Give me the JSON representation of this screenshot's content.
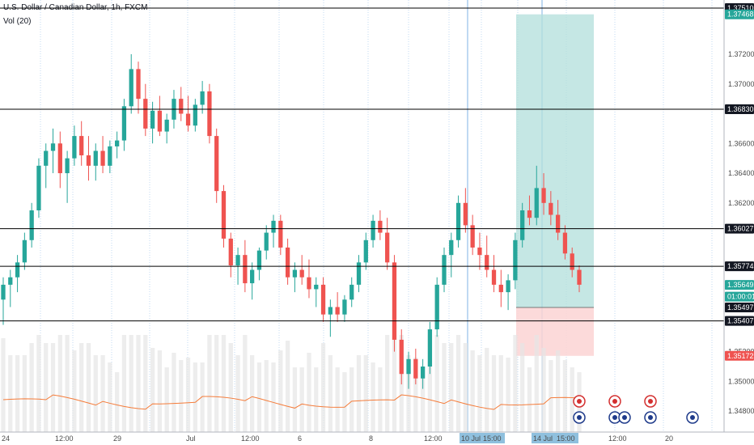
{
  "header": {
    "symbol_title": "U.S. Dollar / Canadian Dollar, 1h, FXCM",
    "volume_label": "Vol (20)"
  },
  "colors": {
    "up": "#26a69a",
    "down": "#ef5350",
    "volume": "#e6e6e6",
    "volume_ma": "#f57c3a",
    "target_zone": "#b2dfdb",
    "stop_zone": "#fbd4d4",
    "level_line": "#000000",
    "grid_dotted": "#7fb3e6",
    "price_box": "#26a69a",
    "stop_box": "#ef5350",
    "dark_box": "#131722"
  },
  "chart_data": {
    "type": "candlestick",
    "title": "U.S. Dollar / Canadian Dollar, 1h, FXCM",
    "indicator": "Vol (20)",
    "y_axis": {
      "ticks": [
        1.3748,
        1.372,
        1.37,
        1.368,
        1.366,
        1.364,
        1.362,
        1.36,
        1.358,
        1.356,
        1.354,
        1.352,
        1.35,
        1.348
      ],
      "tick_labels": [
        "1.37468",
        "1.37200",
        "1.37000",
        "1.36830",
        "1.36600",
        "1.36400",
        "1.36200",
        "1.36027",
        "1.35774",
        "1.35649",
        "1.35407",
        "1.35200",
        "1.35000",
        "1.34800"
      ],
      "ylim": [
        1.3468,
        1.3759
      ]
    },
    "x_axis": {
      "tick_labels": [
        "24",
        "12:00",
        "29",
        "Jul",
        "12:00",
        "6",
        "8",
        "12:00",
        "10 Jul '20",
        "15:00",
        "14 Jul '20",
        "15:00",
        "12:00",
        "20"
      ],
      "highlighted": [
        "10 Jul '20",
        "15:00",
        "14 Jul '20",
        "15:00"
      ]
    },
    "horizontal_levels": [
      1.3751,
      1.3683,
      1.36027,
      1.35774,
      1.35407
    ],
    "price_labels": [
      {
        "text": "1.37510",
        "value": 1.3751,
        "style": "dark"
      },
      {
        "text": "1.37468",
        "value": 1.37468,
        "style": "teal"
      },
      {
        "text": "1.36830",
        "value": 1.3683,
        "style": "dark"
      },
      {
        "text": "1.36027",
        "value": 1.36027,
        "style": "dark"
      },
      {
        "text": "1.35774",
        "value": 1.35774,
        "style": "dark"
      },
      {
        "text": "1.35649",
        "value": 1.35649,
        "style": "teal"
      },
      {
        "text": "01:00:01",
        "value": 1.3557,
        "style": "teal"
      },
      {
        "text": "1.35497",
        "value": 1.35497,
        "style": "dark"
      },
      {
        "text": "1.35407",
        "value": 1.35407,
        "style": "dark"
      },
      {
        "text": "1.35172",
        "value": 1.35172,
        "style": "red"
      }
    ],
    "position": {
      "entry": 1.35497,
      "target": 1.37468,
      "stop": 1.35172
    },
    "candles_ohlc": [
      [
        1.3555,
        1.357,
        1.3538,
        1.3565
      ],
      [
        1.3565,
        1.3575,
        1.355,
        1.357
      ],
      [
        1.357,
        1.3585,
        1.356,
        1.358
      ],
      [
        1.358,
        1.36,
        1.3575,
        1.3595
      ],
      [
        1.3595,
        1.362,
        1.359,
        1.3615
      ],
      [
        1.3615,
        1.365,
        1.361,
        1.3645
      ],
      [
        1.3645,
        1.366,
        1.363,
        1.3655
      ],
      [
        1.3655,
        1.367,
        1.364,
        1.366
      ],
      [
        1.366,
        1.3668,
        1.363,
        1.364
      ],
      [
        1.364,
        1.3655,
        1.362,
        1.365
      ],
      [
        1.365,
        1.3672,
        1.3645,
        1.3665
      ],
      [
        1.3665,
        1.3675,
        1.3645,
        1.3652
      ],
      [
        1.3652,
        1.3665,
        1.3635,
        1.3645
      ],
      [
        1.3645,
        1.366,
        1.3635,
        1.3655
      ],
      [
        1.3655,
        1.3665,
        1.364,
        1.3645
      ],
      [
        1.3645,
        1.3662,
        1.364,
        1.3658
      ],
      [
        1.3658,
        1.3668,
        1.365,
        1.3662
      ],
      [
        1.3662,
        1.369,
        1.3655,
        1.3685
      ],
      [
        1.3685,
        1.372,
        1.368,
        1.371
      ],
      [
        1.371,
        1.3715,
        1.368,
        1.369
      ],
      [
        1.369,
        1.37,
        1.3665,
        1.367
      ],
      [
        1.367,
        1.3688,
        1.366,
        1.3682
      ],
      [
        1.3682,
        1.3692,
        1.3665,
        1.3668
      ],
      [
        1.3668,
        1.368,
        1.366,
        1.3676
      ],
      [
        1.3676,
        1.3696,
        1.367,
        1.369
      ],
      [
        1.369,
        1.3698,
        1.3675,
        1.368
      ],
      [
        1.368,
        1.3692,
        1.3668,
        1.3672
      ],
      [
        1.3672,
        1.369,
        1.3668,
        1.3686
      ],
      [
        1.3686,
        1.3702,
        1.368,
        1.3695
      ],
      [
        1.3695,
        1.37,
        1.366,
        1.3665
      ],
      [
        1.3665,
        1.367,
        1.362,
        1.3628
      ],
      [
        1.3628,
        1.3632,
        1.359,
        1.3596
      ],
      [
        1.3596,
        1.36,
        1.357,
        1.3578
      ],
      [
        1.3578,
        1.359,
        1.3565,
        1.3585
      ],
      [
        1.3585,
        1.3595,
        1.356,
        1.3566
      ],
      [
        1.3566,
        1.358,
        1.3555,
        1.3575
      ],
      [
        1.3575,
        1.359,
        1.3568,
        1.3588
      ],
      [
        1.3588,
        1.3605,
        1.3582,
        1.36
      ],
      [
        1.36,
        1.3612,
        1.359,
        1.3608
      ],
      [
        1.3608,
        1.3612,
        1.3585,
        1.359
      ],
      [
        1.359,
        1.3596,
        1.3565,
        1.357
      ],
      [
        1.357,
        1.358,
        1.356,
        1.3575
      ],
      [
        1.3575,
        1.3585,
        1.3565,
        1.357
      ],
      [
        1.357,
        1.3582,
        1.3556,
        1.3562
      ],
      [
        1.3562,
        1.357,
        1.355,
        1.3565
      ],
      [
        1.3565,
        1.357,
        1.354,
        1.3545
      ],
      [
        1.3545,
        1.3555,
        1.353,
        1.355
      ],
      [
        1.355,
        1.356,
        1.354,
        1.3545
      ],
      [
        1.3545,
        1.3558,
        1.354,
        1.3555
      ],
      [
        1.3555,
        1.357,
        1.355,
        1.3565
      ],
      [
        1.3565,
        1.3585,
        1.356,
        1.358
      ],
      [
        1.358,
        1.36,
        1.3575,
        1.3595
      ],
      [
        1.3595,
        1.3612,
        1.359,
        1.3608
      ],
      [
        1.3608,
        1.3615,
        1.3595,
        1.36
      ],
      [
        1.36,
        1.361,
        1.3575,
        1.358
      ],
      [
        1.358,
        1.3585,
        1.352,
        1.3528
      ],
      [
        1.3528,
        1.3535,
        1.3498,
        1.3505
      ],
      [
        1.3505,
        1.352,
        1.3495,
        1.3515
      ],
      [
        1.3515,
        1.3522,
        1.3498,
        1.3502
      ],
      [
        1.3502,
        1.3515,
        1.3495,
        1.351
      ],
      [
        1.351,
        1.354,
        1.3505,
        1.3535
      ],
      [
        1.3535,
        1.357,
        1.353,
        1.3565
      ],
      [
        1.3565,
        1.359,
        1.356,
        1.3585
      ],
      [
        1.3585,
        1.36,
        1.357,
        1.3595
      ],
      [
        1.3595,
        1.3625,
        1.359,
        1.362
      ],
      [
        1.362,
        1.363,
        1.36,
        1.3605
      ],
      [
        1.3605,
        1.3612,
        1.3585,
        1.359
      ],
      [
        1.359,
        1.36,
        1.3575,
        1.3585
      ],
      [
        1.3585,
        1.3598,
        1.357,
        1.3575
      ],
      [
        1.3575,
        1.3585,
        1.356,
        1.3565
      ],
      [
        1.3565,
        1.3575,
        1.355,
        1.356
      ],
      [
        1.356,
        1.3572,
        1.3548,
        1.3568
      ],
      [
        1.3568,
        1.36,
        1.3562,
        1.3595
      ],
      [
        1.3595,
        1.362,
        1.359,
        1.3615
      ],
      [
        1.3615,
        1.3625,
        1.3605,
        1.361
      ],
      [
        1.361,
        1.3645,
        1.3605,
        1.363
      ],
      [
        1.363,
        1.364,
        1.3612,
        1.362
      ],
      [
        1.362,
        1.3628,
        1.3605,
        1.3612
      ],
      [
        1.3612,
        1.3622,
        1.3595,
        1.36
      ],
      [
        1.36,
        1.3605,
        1.3582,
        1.3586
      ],
      [
        1.3586,
        1.359,
        1.357,
        1.3575
      ],
      [
        1.3575,
        1.3578,
        1.356,
        1.3565
      ]
    ]
  }
}
